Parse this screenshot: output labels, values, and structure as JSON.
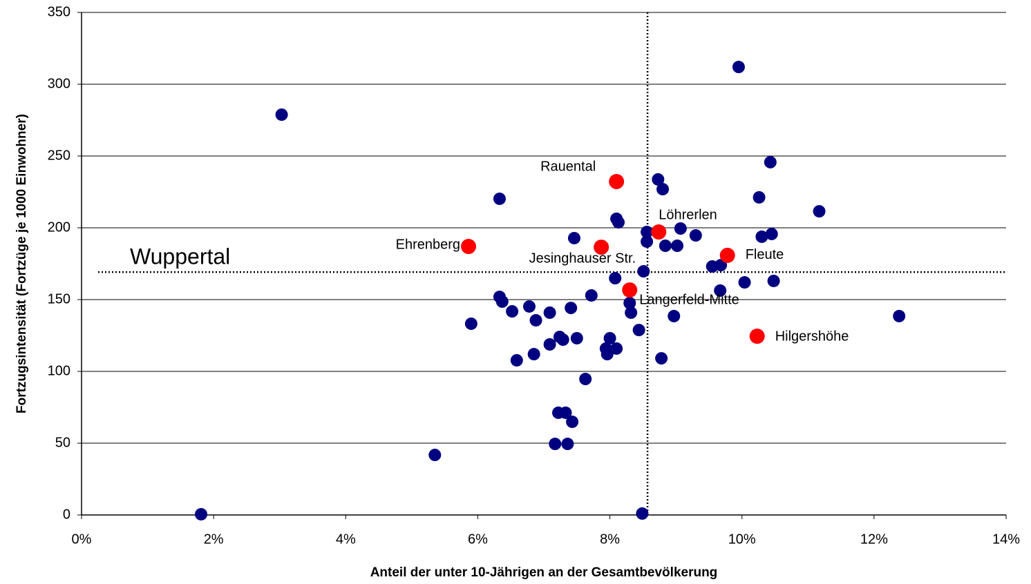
{
  "chart_data": {
    "type": "scatter",
    "xlabel": "Anteil der unter 10-Jährigen an der Gesamtbevölkerung",
    "ylabel": "Fortzugsintensität (Fortzüge je 1000 Einwohner)",
    "xlim": [
      0,
      14
    ],
    "ylim": [
      0,
      350
    ],
    "xticks": [
      {
        "value": 0,
        "label": "0%"
      },
      {
        "value": 2,
        "label": "2%"
      },
      {
        "value": 4,
        "label": "4%"
      },
      {
        "value": 6,
        "label": "6%"
      },
      {
        "value": 8,
        "label": "8%"
      },
      {
        "value": 10,
        "label": "10%"
      },
      {
        "value": 12,
        "label": "12%"
      },
      {
        "value": 14,
        "label": "14%"
      }
    ],
    "yticks": [
      0,
      50,
      100,
      150,
      200,
      250,
      300,
      350
    ],
    "grid": true,
    "reference_lines": [
      {
        "axis": "x",
        "value": 8.57
      },
      {
        "axis": "y",
        "value": 169.2,
        "label": "Wuppertal"
      }
    ],
    "series": [
      {
        "color": "#000080",
        "x": [
          1.81,
          3.03,
          5.35,
          5.9,
          6.33,
          6.33,
          6.37,
          6.52,
          6.59,
          6.78,
          6.85,
          6.88,
          7.09,
          7.09,
          7.17,
          7.22,
          7.24,
          7.29,
          7.33,
          7.36,
          7.41,
          7.43,
          7.46,
          7.5,
          7.63,
          7.72,
          7.94,
          7.96,
          8.0,
          8.08,
          8.1,
          8.1,
          8.13,
          8.3,
          8.32,
          8.44,
          8.49,
          8.51,
          8.56,
          8.56,
          8.73,
          8.78,
          8.8,
          8.84,
          8.97,
          9.02,
          9.07,
          9.3,
          9.55,
          9.68,
          9.67,
          9.95,
          10.04,
          10.26,
          10.3,
          10.43,
          10.45,
          10.48,
          11.17,
          12.38
        ],
        "y": [
          0.5,
          278.8,
          41.8,
          133.2,
          220.2,
          151.9,
          148.6,
          141.8,
          107.7,
          145.2,
          112.0,
          135.6,
          140.9,
          118.8,
          49.5,
          71.2,
          124.0,
          122.1,
          71.2,
          49.5,
          144.2,
          64.9,
          192.8,
          123.1,
          94.7,
          152.9,
          115.9,
          112.0,
          123.1,
          164.9,
          115.9,
          206.3,
          203.8,
          147.6,
          140.9,
          128.8,
          1,
          169.7,
          197.1,
          190.4,
          233.7,
          109.1,
          226.9,
          187.5,
          138.5,
          187.5,
          199.5,
          194.7,
          173.1,
          174.0,
          156.3,
          312.0,
          162.0,
          221.2,
          193.8,
          245.7,
          195.7,
          163.0,
          211.5,
          138.5
        ]
      },
      {
        "color": "#ff0000",
        "x": [
          8.1,
          5.86,
          7.87,
          8.74,
          9.78,
          8.3,
          10.23
        ],
        "y": [
          232.2,
          187.0,
          186.5,
          197.1,
          180.8,
          156.7,
          124.5
        ],
        "labels": [
          "Rauental",
          "Ehrenberg",
          "Jesinghauser Str.",
          "Löhrerlen",
          "Fleute",
          "Langerfeld-Mitte",
          "Hilgershöhe"
        ]
      }
    ]
  }
}
